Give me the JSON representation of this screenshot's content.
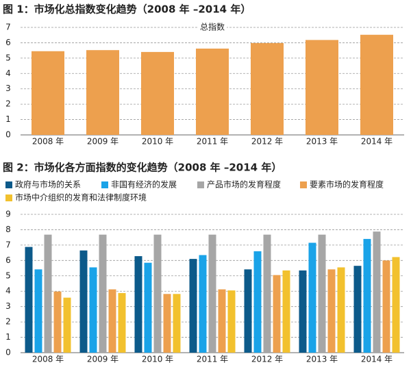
{
  "chart_data": [
    {
      "type": "bar",
      "title": "图 1：市场化总指数变化趋势（2008 年 –2014 年）",
      "categories": [
        "2008 年",
        "2009 年",
        "2010 年",
        "2011 年",
        "2012 年",
        "2013 年",
        "2014 年"
      ],
      "series": [
        {
          "name": "总指数",
          "color": "#eda04e",
          "values": [
            5.45,
            5.52,
            5.4,
            5.62,
            5.98,
            6.18,
            6.52
          ]
        }
      ],
      "ylim": [
        0,
        7
      ],
      "yticks": [
        0,
        1,
        2,
        3,
        4,
        5,
        6,
        7
      ],
      "grid": true,
      "legend": "top-center"
    },
    {
      "type": "bar",
      "title": "图 2：市场化各方面指数的变化趋势（2008 年 –2014 年）",
      "categories": [
        "2008 年",
        "2009 年",
        "2010 年",
        "2011 年",
        "2012 年",
        "2013 年",
        "2014 年"
      ],
      "series": [
        {
          "name": "政府与市场的关系",
          "color": "#0c5a8a",
          "values": [
            6.88,
            6.65,
            6.28,
            6.1,
            5.42,
            5.35,
            5.65
          ]
        },
        {
          "name": "非国有经济的发展",
          "color": "#1aa3e8",
          "values": [
            5.42,
            5.55,
            5.85,
            6.35,
            6.6,
            7.15,
            7.4
          ]
        },
        {
          "name": "产品市场的发育程度",
          "color": "#a6a6a6",
          "values": [
            7.68,
            7.68,
            7.68,
            7.68,
            7.68,
            7.68,
            7.88
          ]
        },
        {
          "name": "要素市场的发育程度",
          "color": "#eda04e",
          "values": [
            3.98,
            4.12,
            3.82,
            4.12,
            5.05,
            5.42,
            6.0
          ]
        },
        {
          "name": "市场中介组织的发育和法律制度环境",
          "color": "#f2c12e",
          "values": [
            3.58,
            3.88,
            3.82,
            4.05,
            5.35,
            5.55,
            6.22
          ]
        }
      ],
      "ylim": [
        0,
        9
      ],
      "yticks": [
        0,
        1,
        2,
        3,
        4,
        5,
        6,
        7,
        8,
        9
      ],
      "grid": true,
      "legend": "top-left"
    }
  ]
}
